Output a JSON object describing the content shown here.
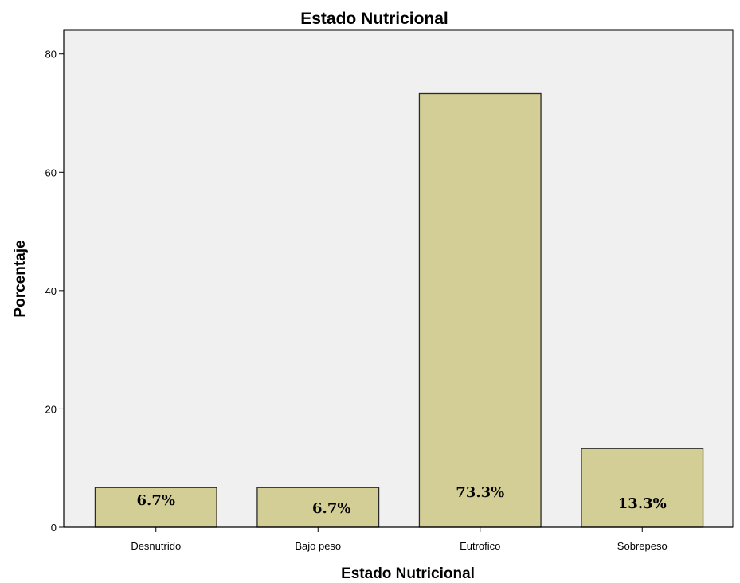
{
  "chart_data": {
    "type": "bar",
    "title": "Estado Nutricional",
    "xlabel": "Estado Nutricional",
    "ylabel": "Porcentaje",
    "categories": [
      "Desnutrido",
      "Bajo peso",
      "Eutrofico",
      "Sobrepeso"
    ],
    "values": [
      6.7,
      6.7,
      73.3,
      13.3
    ],
    "data_labels": [
      "6.7%",
      "6.7%",
      "73.3%",
      "13.3%"
    ],
    "ylim": [
      0,
      84
    ],
    "yticks": [
      0,
      20,
      40,
      60,
      80
    ],
    "grid": false,
    "colors": {
      "bar_fill": "#d3cd96",
      "bar_stroke": "#2b2b2b",
      "plot_background": "#f0f0f0"
    }
  }
}
